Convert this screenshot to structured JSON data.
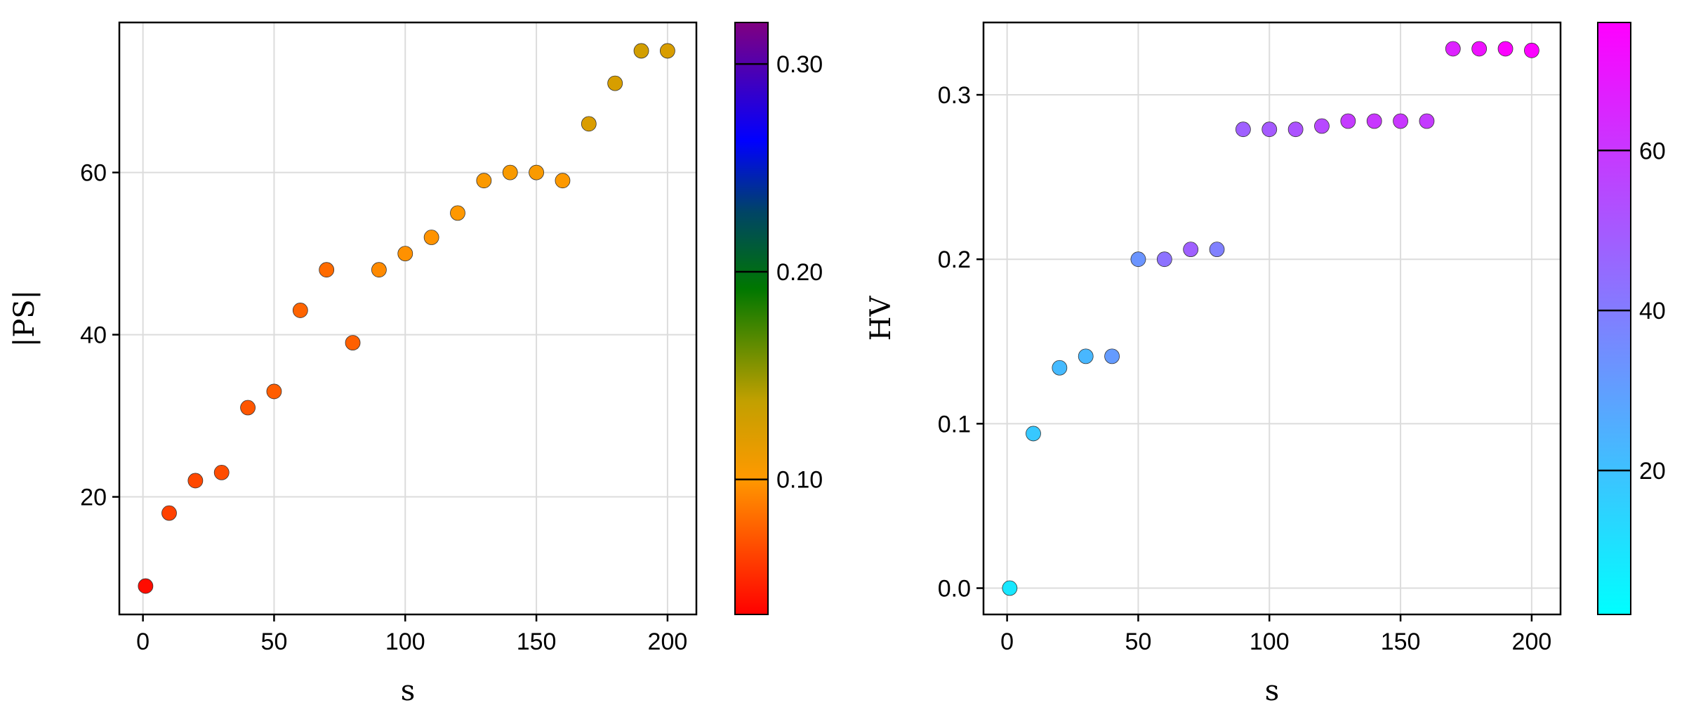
{
  "chart_data": [
    {
      "type": "scatter",
      "title": "",
      "xlabel": "s",
      "ylabel": "|PS|",
      "xlim": [
        -9,
        211
      ],
      "ylim": [
        5.5,
        78.5
      ],
      "xticks": [
        0,
        50,
        100,
        150,
        200
      ],
      "xtick_labels": [
        "0",
        "50",
        "100",
        "150",
        "200"
      ],
      "yticks": [
        20,
        40,
        60
      ],
      "ytick_labels": [
        "20",
        "40",
        "60"
      ],
      "grid": true,
      "series": [
        {
          "name": "|PS|",
          "x": [
            1,
            10,
            20,
            30,
            40,
            50,
            60,
            70,
            80,
            90,
            100,
            110,
            120,
            130,
            140,
            150,
            160,
            170,
            180,
            190,
            200
          ],
          "y": [
            9,
            18,
            22,
            23,
            31,
            33,
            43,
            48,
            39,
            48,
            50,
            52,
            55,
            59,
            60,
            60,
            59,
            66,
            71,
            75,
            75
          ],
          "color_values": [
            0.04,
            0.063,
            0.066,
            0.068,
            0.072,
            0.075,
            0.078,
            0.081,
            0.076,
            0.094,
            0.097,
            0.098,
            0.1,
            0.103,
            0.105,
            0.104,
            0.102,
            0.123,
            0.125,
            0.128,
            0.124
          ]
        }
      ],
      "colorbar": {
        "colormap": "rainbow-reversed",
        "range": [
          0.035,
          0.32
        ],
        "ticks": [
          0.1,
          0.2,
          0.3
        ],
        "tick_labels": [
          "0.10",
          "0.20",
          "0.30"
        ],
        "stops": [
          {
            "offset": 0.0,
            "color": "#ff0000"
          },
          {
            "offset": 0.23,
            "color": "#ff9900"
          },
          {
            "offset": 0.36,
            "color": "#c2a000"
          },
          {
            "offset": 0.55,
            "color": "#007700"
          },
          {
            "offset": 0.68,
            "color": "#004466"
          },
          {
            "offset": 0.8,
            "color": "#0000ff"
          },
          {
            "offset": 1.0,
            "color": "#800080"
          }
        ]
      }
    },
    {
      "type": "scatter",
      "title": "",
      "xlabel": "s",
      "ylabel": "HV",
      "xlim": [
        -9,
        211
      ],
      "ylim": [
        -0.016,
        0.344
      ],
      "xticks": [
        0,
        50,
        100,
        150,
        200
      ],
      "xtick_labels": [
        "0",
        "50",
        "100",
        "150",
        "200"
      ],
      "yticks": [
        0.0,
        0.1,
        0.2,
        0.3
      ],
      "ytick_labels": [
        "0.0",
        "0.1",
        "0.2",
        "0.3"
      ],
      "grid": true,
      "series": [
        {
          "name": "HV",
          "x": [
            1,
            10,
            20,
            30,
            40,
            50,
            60,
            70,
            80,
            90,
            100,
            110,
            120,
            130,
            140,
            150,
            160,
            170,
            180,
            190,
            200
          ],
          "y": [
            0.0,
            0.094,
            0.134,
            0.141,
            0.141,
            0.2,
            0.2,
            0.206,
            0.206,
            0.279,
            0.279,
            0.279,
            0.281,
            0.284,
            0.284,
            0.284,
            0.284,
            0.328,
            0.328,
            0.328,
            0.327
          ],
          "color_values": [
            9,
            18,
            22,
            23,
            31,
            33,
            43,
            48,
            39,
            48,
            50,
            52,
            55,
            59,
            60,
            60,
            59,
            66,
            71,
            75,
            75
          ]
        }
      ],
      "colorbar": {
        "colormap": "cool",
        "range": [
          2,
          76
        ],
        "ticks": [
          20,
          40,
          60
        ],
        "tick_labels": [
          "20",
          "40",
          "60"
        ],
        "stops": [
          {
            "offset": 0.0,
            "color": "#00ffff"
          },
          {
            "offset": 1.0,
            "color": "#ff00ff"
          }
        ]
      }
    }
  ]
}
